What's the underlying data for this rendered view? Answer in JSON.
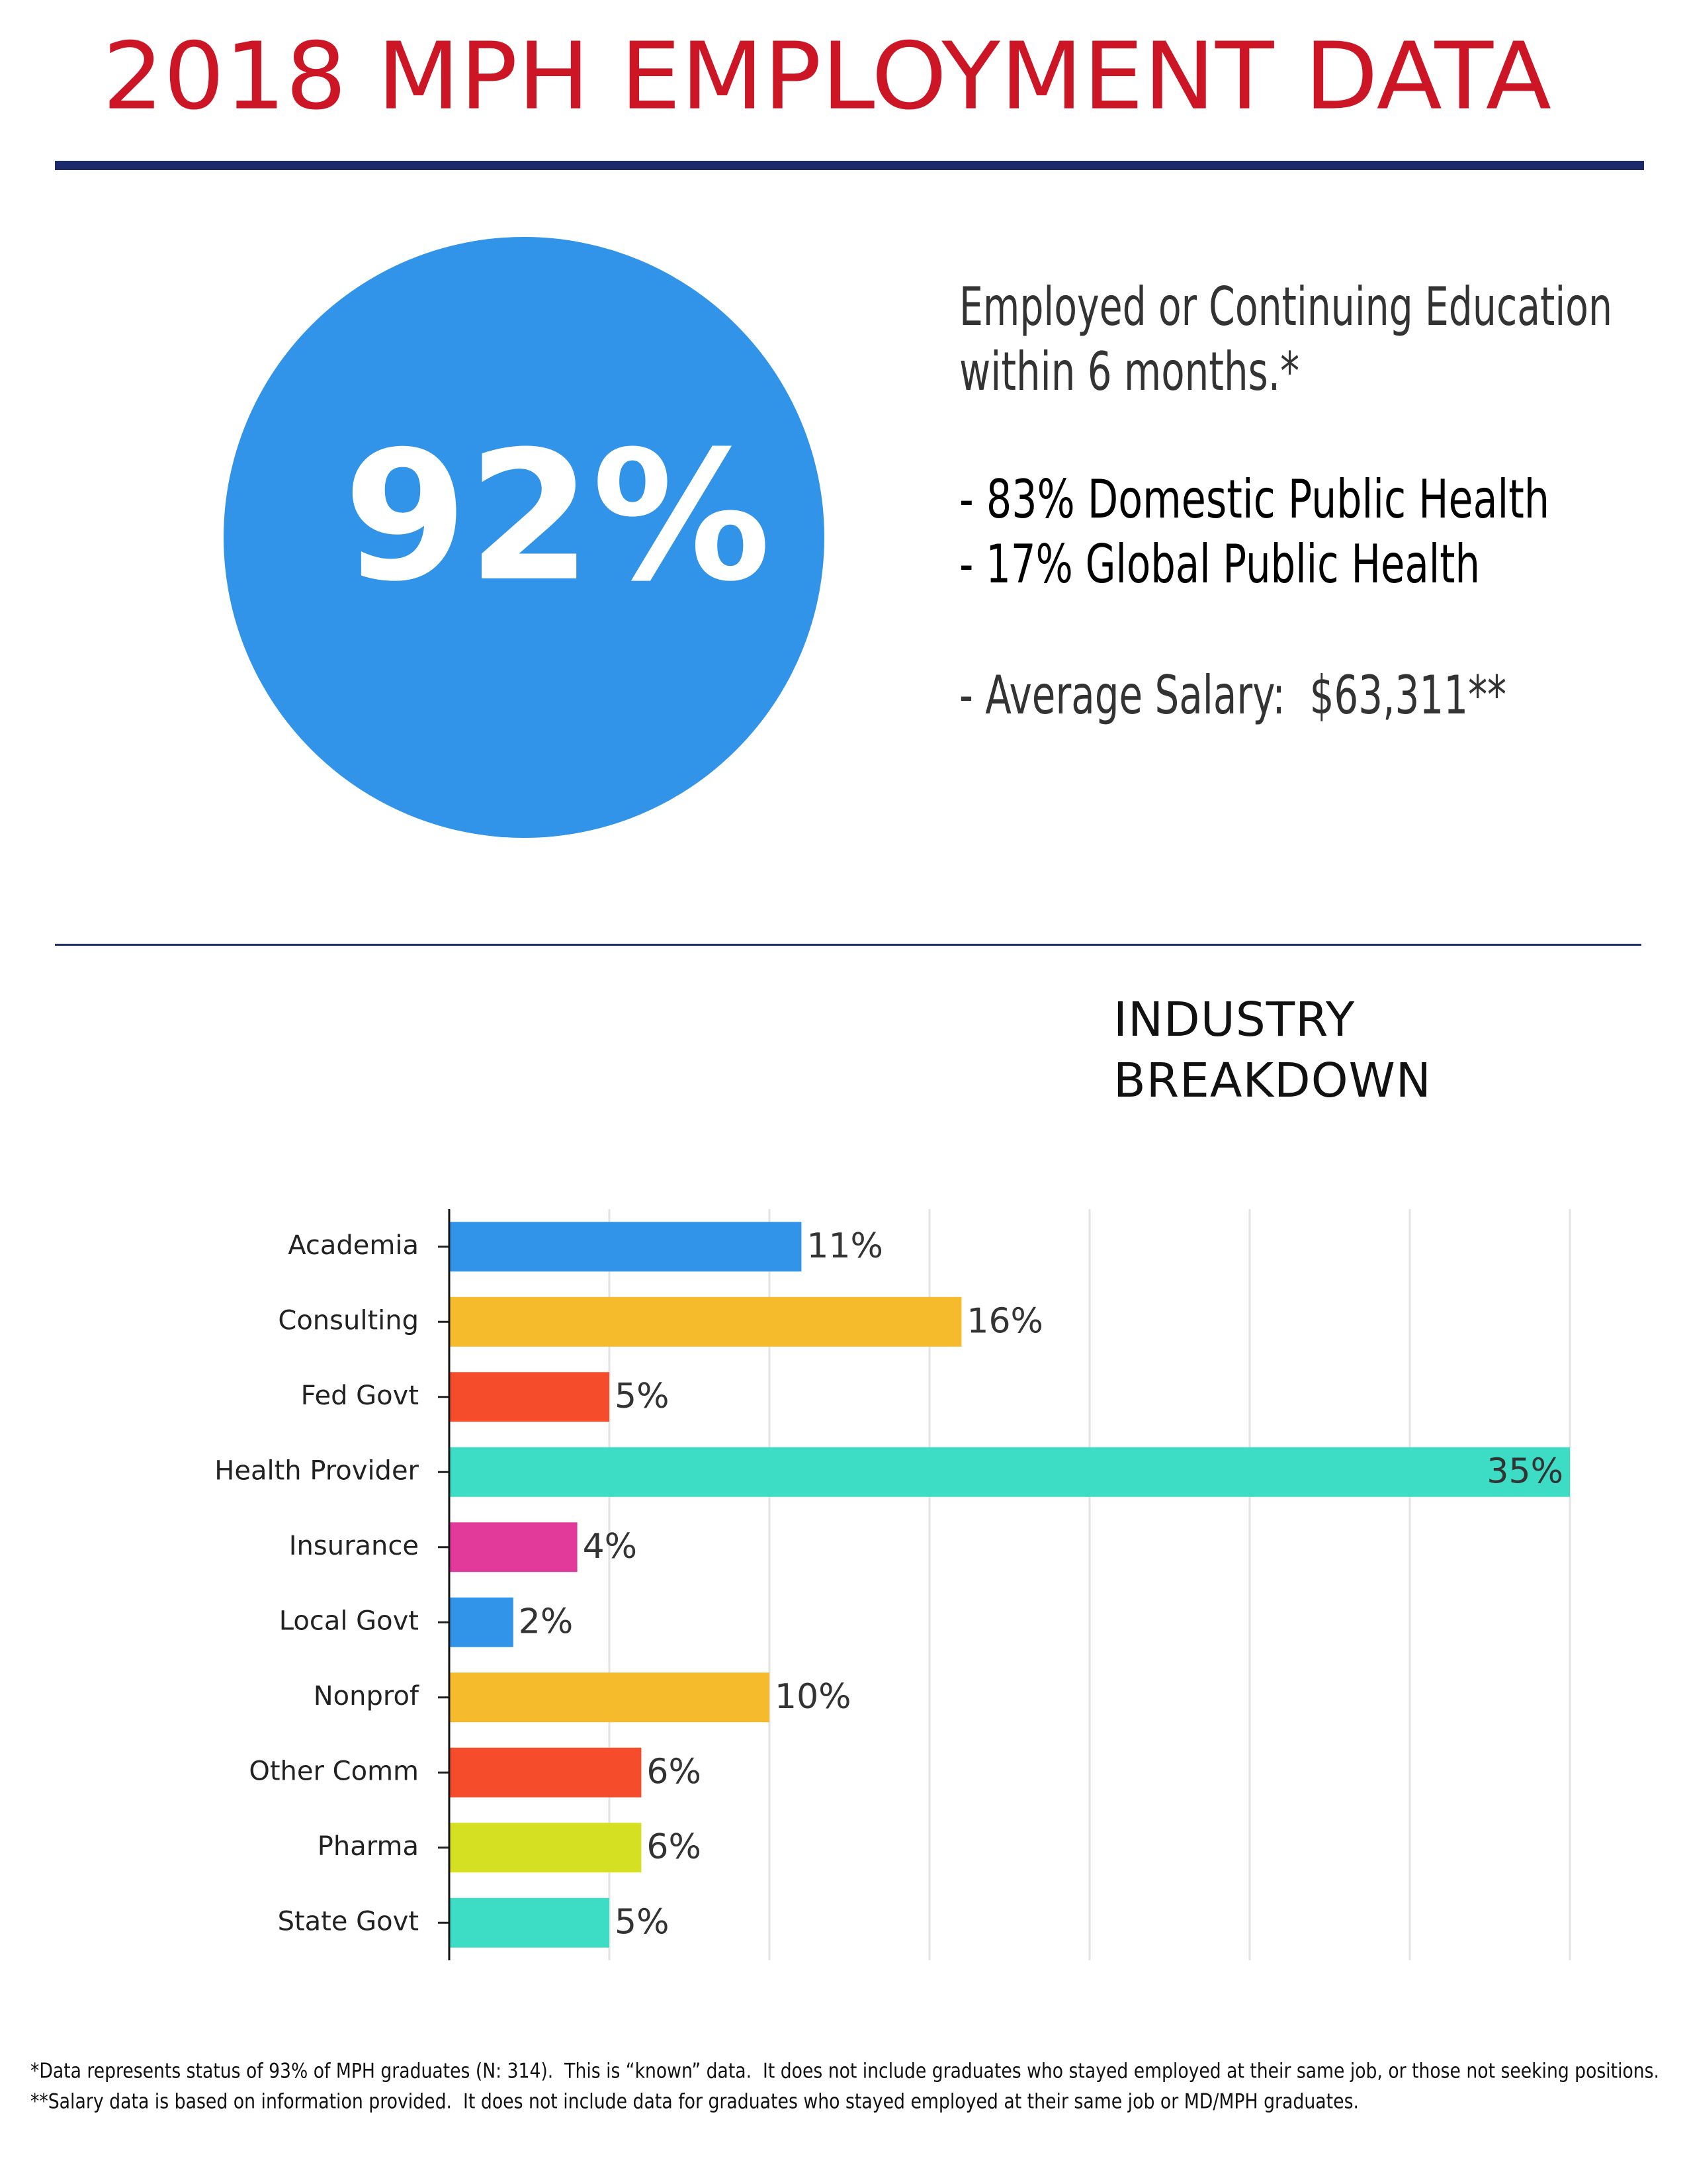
{
  "header": {
    "title": "2018 MPH EMPLOYMENT DATA"
  },
  "summary": {
    "big_figure": "92%",
    "lines": [
      "Employed or Continuing Education",
      "within 6 months.*",
      "- 83% Domestic Public Health",
      "- 17% Global Public Health",
      "- Average Salary:  $63,311**"
    ]
  },
  "chart_data": {
    "type": "bar",
    "orientation": "horizontal",
    "title": "INDUSTRY BREAKDOWN",
    "categories": [
      "Academia",
      "Consulting",
      "Fed Govt",
      "Health Provider",
      "Insurance",
      "Local Govt",
      "Nonprof",
      "Other Comm",
      "Pharma",
      "State Govt"
    ],
    "values": [
      11,
      16,
      5,
      35,
      4,
      2,
      10,
      6,
      6,
      5
    ],
    "value_labels": [
      "11%",
      "16%",
      "5%",
      "35%",
      "4%",
      "2%",
      "10%",
      "6%",
      "6%",
      "5%"
    ],
    "colors": [
      "#3294e8",
      "#f5bb2c",
      "#f54d2c",
      "#3ddcc4",
      "#e23a9b",
      "#3294e8",
      "#f5bb2c",
      "#f54d2c",
      "#d4e021",
      "#3ddcc4"
    ],
    "xlim": [
      0,
      35
    ],
    "xticks": [
      0,
      5,
      10,
      15,
      20,
      25,
      30,
      35
    ],
    "grid": true
  },
  "footnotes": [
    "*Data represents status of 93% of MPH graduates (N: 314).  This is “known” data.  It does not include graduates who stayed employed at their same job, or those not seeking positions.",
    "**Salary data is based on information provided.  It does not include data for graduates who stayed employed at their same job or MD/MPH graduates."
  ]
}
